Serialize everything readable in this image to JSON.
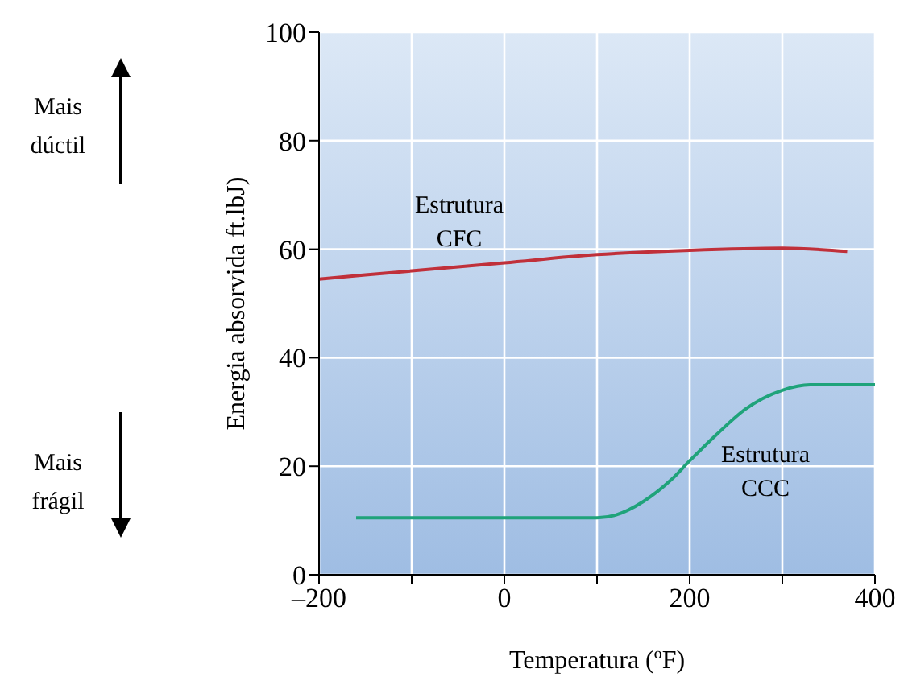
{
  "chart_data": {
    "type": "line",
    "xlabel": "Temperatura (ºF)",
    "ylabel": "Energia absorvida ft.lbJ)",
    "xlim": [
      -200,
      400
    ],
    "xticks": [
      {
        "value": -200,
        "label": "–200"
      },
      {
        "value": -100,
        "label": null
      },
      0,
      {
        "value": 100,
        "label": null
      },
      200,
      {
        "value": 300,
        "label": null
      },
      400
    ],
    "ylim": [
      0,
      100
    ],
    "yticks": [
      0,
      20,
      40,
      60,
      80,
      100
    ],
    "grid": true,
    "marker": "none",
    "line_style": "solid",
    "series": [
      {
        "name": "Estrutura CFC",
        "color": "#c0303a",
        "x": [
          -200,
          -100,
          0,
          100,
          200,
          300,
          370
        ],
        "values": [
          54.5,
          56,
          57.5,
          59,
          59.8,
          60.2,
          59.6
        ]
      },
      {
        "name": "Estrutura CCC",
        "color": "#1fa37a",
        "x": [
          -160,
          100,
          120,
          150,
          180,
          200,
          230,
          260,
          300,
          330,
          400
        ],
        "values": [
          10.5,
          10.5,
          11,
          13.5,
          17.5,
          21,
          26,
          30.5,
          34,
          35,
          35
        ]
      }
    ],
    "annotations": [
      "Mais dúctil",
      "Mais frágil"
    ]
  }
}
